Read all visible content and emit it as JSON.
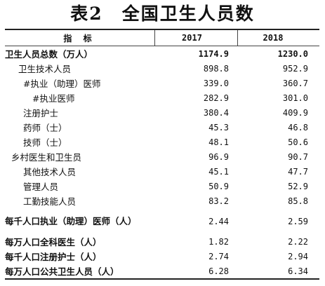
{
  "title": "表2　全国卫生人员数",
  "header": {
    "indicator": "指 标",
    "col1": "2017",
    "col2": "2018"
  },
  "rows": [
    {
      "label": "卫生人员总数（万人）",
      "v2017": "1174.9",
      "v2018": "1230.0"
    },
    {
      "label": "卫生技术人员",
      "v2017": "898.8",
      "v2018": "952.9"
    },
    {
      "label": "#执业（助理）医师",
      "v2017": "339.0",
      "v2018": "360.7"
    },
    {
      "label": "#执业医师",
      "v2017": "282.9",
      "v2018": "301.0"
    },
    {
      "label": "注册护士",
      "v2017": "380.4",
      "v2018": "409.9"
    },
    {
      "label": "药师（士）",
      "v2017": "45.3",
      "v2018": "46.8"
    },
    {
      "label": "技师（士）",
      "v2017": "48.1",
      "v2018": "50.6"
    },
    {
      "label": "乡村医生和卫生员",
      "v2017": "96.9",
      "v2018": "90.7"
    },
    {
      "label": "其他技术人员",
      "v2017": "45.1",
      "v2018": "47.7"
    },
    {
      "label": "管理人员",
      "v2017": "50.9",
      "v2018": "52.9"
    },
    {
      "label": "工勤技能人员",
      "v2017": "83.2",
      "v2018": "85.8"
    },
    {
      "label": "每千人口执业（助理）医师（人）",
      "v2017": "2.44",
      "v2018": "2.59"
    },
    {
      "label": "每万人口全科医生（人）",
      "v2017": "1.82",
      "v2018": "2.22"
    },
    {
      "label": "每千人口注册护士（人）",
      "v2017": "2.74",
      "v2018": "2.94"
    },
    {
      "label": "每万人口公共卫生人员（人）",
      "v2017": "6.28",
      "v2018": "6.34"
    }
  ]
}
